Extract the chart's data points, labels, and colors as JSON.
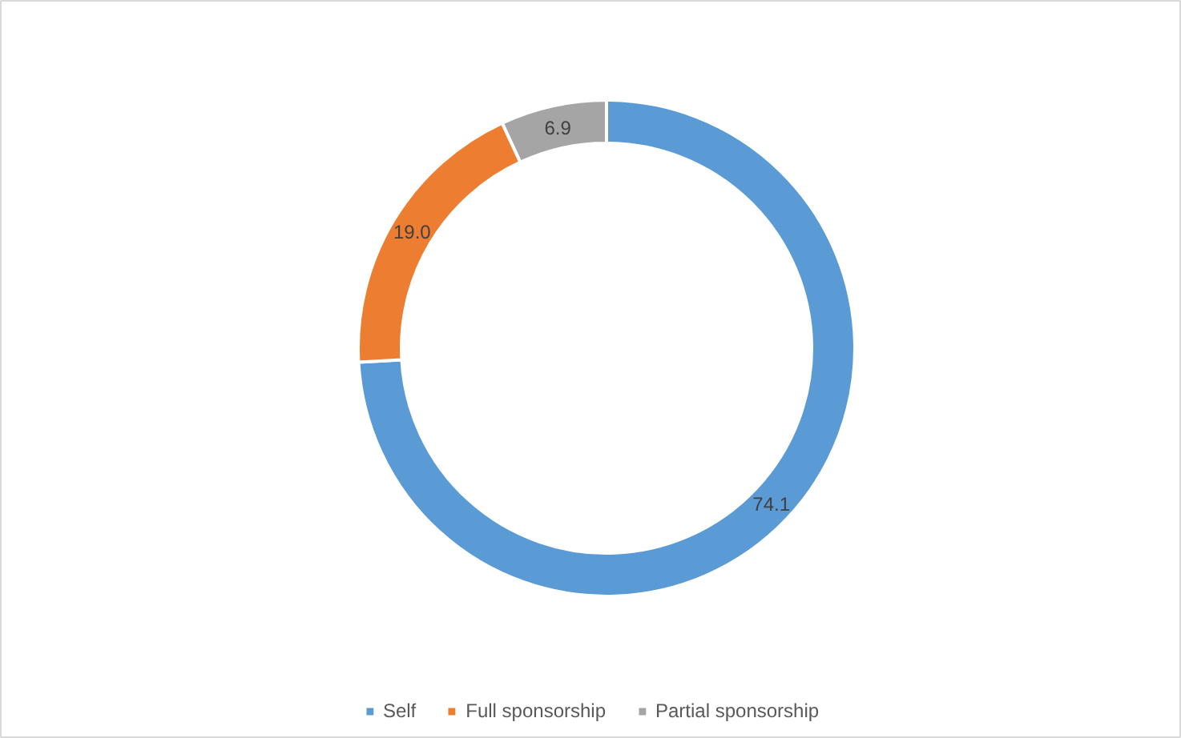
{
  "chart_data": {
    "type": "donut",
    "categories": [
      "Self",
      "Full sponsorship",
      "Partial sponsorship"
    ],
    "values": [
      74.1,
      19.0,
      6.9
    ],
    "colors": [
      "#5b9bd5",
      "#ed7d31",
      "#a5a5a5"
    ],
    "value_labels": [
      "74.1",
      "19.0",
      "6.9"
    ],
    "legend": "bottom"
  }
}
